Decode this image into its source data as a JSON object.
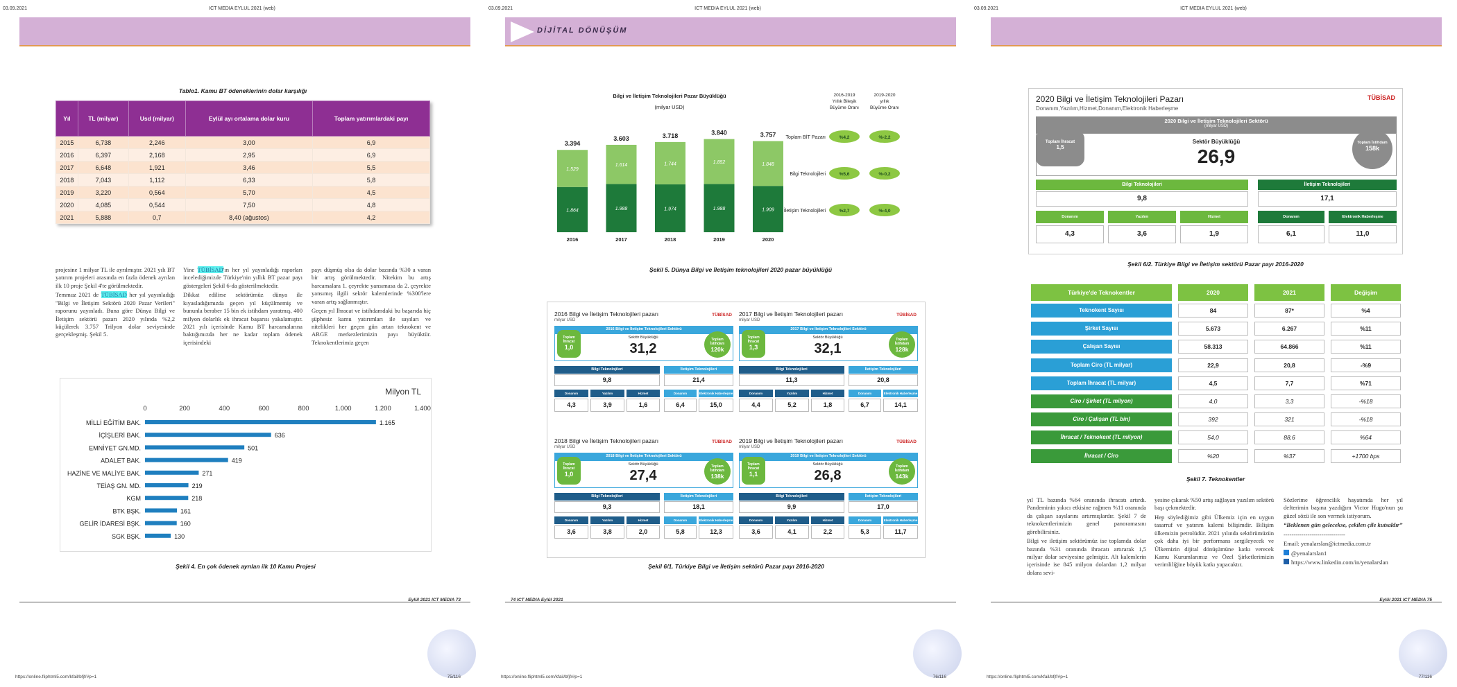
{
  "common": {
    "date": "03.09.2021",
    "title": "ICT MEDIA EYLUL 2021 (web)",
    "url": "https://online.fliphtml5.com/kfail/bfjf/#p=1"
  },
  "p1": {
    "page_no": "75/116",
    "table_caption": "Tablo1. Kamu BT ödeneklerinin dolar karşılığı",
    "table_headers": [
      "Yıl",
      "TL (milyar)",
      "Usd (milyar)",
      "Eylül ayı ortalama dolar kuru",
      "Toplam yatırımlardaki payı"
    ],
    "table_rows": [
      [
        "2015",
        "6,738",
        "2,246",
        "3,00",
        "6,9"
      ],
      [
        "2016",
        "6,397",
        "2,168",
        "2,95",
        "6,9"
      ],
      [
        "2017",
        "6,648",
        "1,921",
        "3,46",
        "5,5"
      ],
      [
        "2018",
        "7,043",
        "1,112",
        "6,33",
        "5,8"
      ],
      [
        "2019",
        "3,220",
        "0,564",
        "5,70",
        "4,5"
      ],
      [
        "2020",
        "4,085",
        "0,544",
        "7,50",
        "4,8"
      ],
      [
        "2021",
        "5,888",
        "0,7",
        "8,40 (ağustos)",
        "4,2"
      ]
    ],
    "col1": [
      "projesine 1 milyar TL ile ayrılmıştır. 2021 yılı BT yatırım projeleri arasında en fazla ödenek ayrılan ilk 10 proje Şekil 4'te görülmektedir.",
      "Temmuz 2021 de ",
      "TÜBİSAD",
      " her yıl yayınladığı \"Bilgi ve İletişim Sektörü 2020 Pazar Verileri\" raporunu yayınladı. Buna göre Dünya Bilgi ve İletişim sektörü pazarı 2020 yılında %2,2 küçülerek 3.757 Trilyon dolar seviyesinde gerçekleşmiş. Şekil 5."
    ],
    "col2": [
      "Yine ",
      "TÜBİSAD",
      "'ın her yıl yayınladığı raporları incelediğimizde Türkiye'nin yıllık BT pazar payı göstergeleri Şekil 6-da gösterilmektedir.",
      "Dikkat edilirse sektörümüz dünya ile kıyasladığımızda geçen yıl küçülmemiş ve bununla beraber 15 bin ek istihdam yaratmış, 400 milyon dolarlık ek ihracat başarısı yakalamıştır. 2021 yılı içerisinde Kamu BT harcamalarına baktığımızda her ne kadar toplam ödenek içerisindeki"
    ],
    "col3": [
      "payı düşmüş olsa da dolar bazında %30 a varan bir artış görülmektedir. Nitekim bu artış harcamalara 1. çeyrekte yansımasa da 2. çeyrekte yansımış ilgili sektör kalemlerinde %300'lere varan artış sağlanmıştır.",
      "Geçen yıl İhracat ve istihdamdaki bu başarıda hiç şüphesiz kamu yatırımları ile sayıları ve nitelikleri her geçen gün artan teknokent ve ARGE merkezlerimizin payı büyüktür. Teknokentlerimiz geçen"
    ],
    "fig4_caption": "Şekil 4. En çok ödenek ayrılan ilk 10 Kamu Projesi",
    "footer": "Eylül 2021 ICT MEDIA 73"
  },
  "chart_data": [
    {
      "type": "bar",
      "orientation": "horizontal",
      "title": "",
      "unit_label": "Milyon TL",
      "categories": [
        "MİLLİ EĞİTİM BAK.",
        "İÇİŞLERİ BAK.",
        "EMNİYET GN.MD.",
        "ADALET BAK.",
        "HAZİNE VE MALİYE BAK.",
        "TEİAŞ GN. MD.",
        "KGM",
        "BTK BŞK.",
        "GELİR İDARESİ BŞK.",
        "SGK BŞK."
      ],
      "values": [
        1165,
        636,
        501,
        419,
        271,
        219,
        218,
        161,
        160,
        130
      ],
      "value_labels": [
        "1.165",
        "636",
        "501",
        "419",
        "271",
        "219",
        "218",
        "161",
        "160",
        "130"
      ],
      "xlim": [
        0,
        1400
      ],
      "ticks": [
        "0",
        "200",
        "400",
        "600",
        "800",
        "1.000",
        "1.200",
        "1.400"
      ],
      "color": "#1f7fbf"
    },
    {
      "type": "bar",
      "stacked": true,
      "title": "Bilgi ve İletişim Teknolojileri Pazar Büyüklüğü",
      "subtitle": "(milyar USD)",
      "categories": [
        "2016",
        "2017",
        "2018",
        "2019",
        "2020"
      ],
      "totals": [
        "3.394",
        "3.603",
        "3.718",
        "3.840",
        "3.757"
      ],
      "series": [
        {
          "values": [
            1.864,
            1.988,
            1.974,
            1.988,
            1.909
          ],
          "labels": [
            "1.864",
            "1.988",
            "1.974",
            "1.988",
            "1.909"
          ],
          "color": "#1e7a3a"
        },
        {
          "values": [
            1.529,
            1.614,
            1.744,
            1.852,
            1.848
          ],
          "labels": [
            "1.529",
            "1.614",
            "1.744",
            "1.852",
            "1.848"
          ],
          "color": "#8dc866"
        }
      ],
      "growth_header1": "2016-2019 Yıllık Bileşik Büyüme Oranı",
      "growth_header2": "2019-2020 yıllık Büyüme Oranı",
      "growth_rows": [
        {
          "label": "Toplam BİT Pazarı",
          "a": "%4,2",
          "b": "%-2,2"
        },
        {
          "label": "Bilgi Teknolojileri",
          "a": "%5,6",
          "b": "%-0,2"
        },
        {
          "label": "İletişim Teknolojileri",
          "a": "%2,7",
          "b": "%-4,0"
        }
      ]
    }
  ],
  "p2": {
    "page_no": "76/116",
    "logo_text": "DİJİTAL DÖNÜŞÜM",
    "fig5_caption": "Şekil 5. Dünya Bilgi ve İletişim teknolojileri 2020 pazar büyüklüğü",
    "fig61_caption": "Şekil 6/1. Türkiye Bilgi ve İletişim sektörü Pazar payı 2016-2020",
    "footer": "74 ICT MEDIA Eylül 2021",
    "cards": [
      {
        "title": "2016 Bilgi ve İletişim Teknolojileri pazarı",
        "sub": "milyar USD",
        "banner": "2016 Bilgi ve İletişim Teknolojileri Sektörü",
        "ihr_label": "Toplam İhracat",
        "ihr": "1,0",
        "size_label": "Sektör Büyüklüğü",
        "size": "31,2",
        "ist_label": "Toplam İstihdam",
        "ist": "120k",
        "bt": "9,8",
        "it": "21,4",
        "v": [
          "4,3",
          "3,9",
          "1,6",
          "6,4",
          "15,0"
        ]
      },
      {
        "title": "2017 Bilgi ve İletişim Teknolojileri pazarı",
        "sub": "milyar USD",
        "banner": "2017 Bilgi ve İletişim Teknolojileri Sektörü",
        "ihr_label": "Toplam İhracat",
        "ihr": "1,3",
        "size_label": "Sektör Büyüklüğü",
        "size": "32,1",
        "ist_label": "Toplam İstihdam",
        "ist": "128k",
        "bt": "11,3",
        "it": "20,8",
        "v": [
          "4,4",
          "5,2",
          "1,8",
          "6,7",
          "14,1"
        ]
      },
      {
        "title": "2018 Bilgi ve İletişim Teknolojileri pazarı",
        "sub": "milyar USD",
        "banner": "2018 Bilgi ve İletişim Teknolojileri Sektörü",
        "ihr_label": "Toplam İhracat",
        "ihr": "1,0",
        "size_label": "Sektör Büyüklüğü",
        "size": "27,4",
        "ist_label": "Toplam İstihdam",
        "ist": "138k",
        "bt": "9,3",
        "it": "18,1",
        "v": [
          "3,6",
          "3,8",
          "2,0",
          "5,8",
          "12,3"
        ]
      },
      {
        "title": "2019 Bilgi ve İletişim Teknolojileri pazarı",
        "sub": "milyar USD",
        "banner": "2019 Bilgi ve İletişim Teknolojileri Sektörü",
        "ihr_label": "Toplam İhracat",
        "ihr": "1,1",
        "size_label": "Sektör Büyüklüğü",
        "size": "26,8",
        "ist_label": "Toplam İstihdam",
        "ist": "143k",
        "bt": "9,9",
        "it": "17,0",
        "v": [
          "3,6",
          "4,1",
          "2,2",
          "5,3",
          "11,7"
        ]
      }
    ],
    "card_labels": {
      "bt": "Bilgi Teknolojileri",
      "it": "İletişim Teknolojileri",
      "tubisad": "TÜBİSAD",
      "sub": [
        "Donanım",
        "Yazılım",
        "Hizmet",
        "Donanım",
        "Elektronik Haberleşme"
      ]
    }
  },
  "p3": {
    "page_no": "77/116",
    "big": {
      "title": "2020 Bilgi ve İletişim Teknolojileri Pazarı",
      "sub": [
        "Donanım",
        "Yazılım",
        "Hizmet",
        "Donanım",
        "Elektronik Haberleşme"
      ],
      "banner": "2020 Bilgi ve İletişim Teknolojileri Sektörü",
      "banner_sub": "(milyar USD)",
      "ihr_label": "Toplam İhracat",
      "ihr": "1,5",
      "size_label": "Sektör Büyüklüğü",
      "size": "26,9",
      "ist_label": "Toplam İstihdam",
      "ist": "158k",
      "bt_label": "Bilgi Teknolojileri",
      "it_label": "İletişim Teknolojileri",
      "bt": "9,8",
      "it": "17,1",
      "v": [
        "4,3",
        "3,6",
        "1,9",
        "6,1",
        "11,0"
      ],
      "tubisad": "TÜBİSAD"
    },
    "fig62_caption": "Şekil 6/2. Türkiye Bilgi ve İletişim sektörü Pazar payı 2016-2020",
    "tk_headers": [
      "Türkiye'de Teknokentler",
      "2020",
      "2021",
      "Değişim"
    ],
    "tk_rows": [
      [
        "Teknokent Sayısı",
        "84",
        "87*",
        "%4"
      ],
      [
        "Şirket Sayısı",
        "5.673",
        "6.267",
        "%11"
      ],
      [
        "Çalışan Sayısı",
        "58.313",
        "64.866",
        "%11"
      ],
      [
        "Toplam Ciro (TL milyar)",
        "22,9",
        "20,8",
        "-%9"
      ],
      [
        "Toplam İhracat (TL milyar)",
        "4,5",
        "7,7",
        "%71"
      ],
      [
        "Ciro / Şirket (TL milyon)",
        "4,0",
        "3,3",
        "-%18"
      ],
      [
        "Ciro / Çalışan (TL bin)",
        "392",
        "321",
        "-%18"
      ],
      [
        "İhracat / Teknokent (TL milyon)",
        "54,0",
        "88,6",
        "%64"
      ],
      [
        "İhracat / Ciro",
        "%20",
        "%37",
        "+1700 bps"
      ]
    ],
    "fig7_caption": "Şekil 7. Teknokentler",
    "col1": [
      "yıl TL bazında %64 oranında ihracatı artırdı. Pandeminin yıkıcı etkisine rağmen %11 oranında da çalışan sayılarını artırmışlardır. Şekil 7 de teknokentlerimizin genel panoramasını görebilirsiniz.",
      "Bilgi ve iletişim sektörümüz ise toplamda dolar bazında %31 oranında ihracatı artırarak 1,5 milyar dolar seviyesine gelmiştir. Alt kalemlerin içerisinde ise 845 milyon dolardan 1,2 milyar dolara sevi-"
    ],
    "col2": [
      "yesine çıkarak %50 artış sağlayan yazılım sektörü başı çekmektedir.",
      "Hep söylediğimiz gibi Ülkemiz için en uygun tasarruf ve yatırım kalemi bilişimdir. Bilişim ülkemizin petrolüdür. 2021 yılında sektörümüzün çok daha iyi bir performans sergileyecek ve Ülkemizin dijital dönüşümüne katkı verecek Kamu Kurumlarımız ve Özel Şirketlerimizin verimliliğine büyük katkı yapacaktır."
    ],
    "col3": [
      "Sözlerime öğrencilik hayatımda her yıl defterimin başına yazdığım Victor Hugo'nun şu güzel sözü ile son vermek istiyorum.",
      "“Beklenen gün gelecekse, çekilen çile kutsaldır”",
      "-------------------------------",
      "Email: yenalarslan@ictmedia.com.tr",
      "@yenalarslan1",
      "https://www.linkedin.com/in/yenalarslan"
    ],
    "footer": "Eylül 2021 ICT MEDIA 75"
  }
}
